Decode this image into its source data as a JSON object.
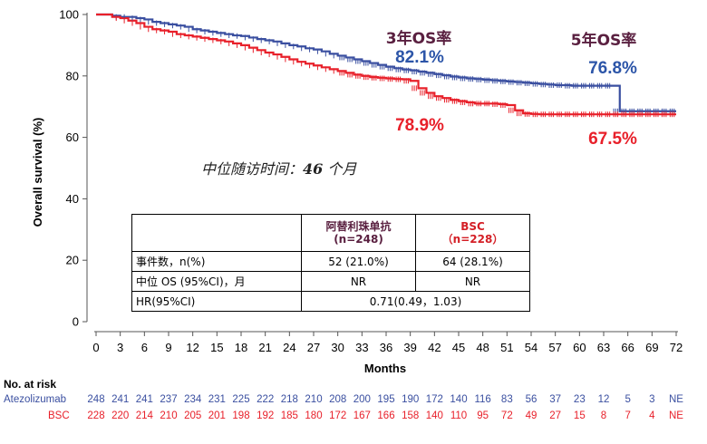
{
  "chart_data": {
    "type": "line",
    "subtype": "kaplan-meier",
    "xlabel": "Months",
    "ylabel": "Overall survival (%)",
    "xlim": [
      0,
      72
    ],
    "ylim": [
      0,
      100
    ],
    "xticks": [
      0,
      3,
      6,
      9,
      12,
      15,
      18,
      21,
      24,
      27,
      30,
      33,
      36,
      39,
      42,
      45,
      48,
      51,
      54,
      57,
      60,
      63,
      66,
      69,
      72
    ],
    "yticks": [
      0,
      20,
      40,
      60,
      80,
      100
    ],
    "series": [
      {
        "name": "Atezolizumab",
        "color": "#3a4fa0",
        "x": [
          0,
          1,
          2,
          3,
          4,
          5,
          6,
          7,
          8,
          9,
          10,
          11,
          12,
          13,
          14,
          15,
          16,
          17,
          18,
          19,
          20,
          21,
          22,
          23,
          24,
          25,
          26,
          27,
          28,
          29,
          30,
          31,
          32,
          33,
          34,
          35,
          36,
          37,
          38,
          39,
          40,
          41,
          42,
          43,
          44,
          45,
          46,
          47,
          48,
          49,
          50,
          51,
          52,
          53,
          54,
          55,
          56,
          57,
          58,
          59,
          60,
          61,
          62,
          63,
          64,
          65,
          66,
          67,
          68,
          69,
          70,
          71,
          72
        ],
        "y": [
          100,
          100,
          99.6,
          99.2,
          99.2,
          98.8,
          98.4,
          97.6,
          97.2,
          96.8,
          96.4,
          96,
          95.2,
          94.8,
          94.4,
          94,
          93.6,
          93.2,
          93,
          92.5,
          92,
          91.6,
          91.2,
          90.6,
          90,
          89.6,
          89,
          88.6,
          88,
          87.2,
          86.6,
          86,
          85.4,
          84.8,
          84.2,
          83.6,
          83,
          82.5,
          82.1,
          81.8,
          81.4,
          81,
          80.6,
          80.2,
          79.8,
          79.5,
          79.2,
          79,
          78.8,
          78.6,
          78.4,
          78.2,
          78,
          77.8,
          77.6,
          77.4,
          77.2,
          77,
          77,
          76.8,
          76.8,
          76.8,
          76.8,
          76.8,
          76.8,
          68.5,
          68.5,
          68.5,
          68.5,
          68.5,
          68.5,
          68.5,
          68.5
        ]
      },
      {
        "name": "BSC",
        "color": "#e8202a",
        "x": [
          0,
          1,
          2,
          3,
          4,
          5,
          6,
          7,
          8,
          9,
          10,
          11,
          12,
          13,
          14,
          15,
          16,
          17,
          18,
          19,
          20,
          21,
          22,
          23,
          24,
          25,
          26,
          27,
          28,
          29,
          30,
          31,
          32,
          33,
          34,
          35,
          36,
          37,
          38,
          39,
          40,
          41,
          42,
          43,
          44,
          45,
          46,
          47,
          48,
          49,
          50,
          51,
          52,
          53,
          54,
          55,
          56,
          57,
          58,
          59,
          60,
          61,
          62,
          63,
          64,
          65,
          66,
          67,
          68,
          69,
          70,
          71,
          72
        ],
        "y": [
          100,
          100,
          99.2,
          98.8,
          98,
          97.2,
          96,
          95.2,
          94.8,
          94.4,
          93.6,
          93.2,
          92.8,
          92.4,
          92,
          91.6,
          91.2,
          90.6,
          90,
          89.2,
          88.4,
          87.6,
          87,
          86.2,
          85.4,
          84.6,
          84,
          83.4,
          82.8,
          82.2,
          81.6,
          81,
          80.4,
          80,
          79.6,
          79.4,
          79.2,
          79,
          78.9,
          78.4,
          76,
          74.5,
          73.4,
          72.8,
          72.2,
          71.8,
          71.4,
          71,
          71,
          71,
          70.8,
          70.5,
          68.8,
          67.8,
          67.6,
          67.5,
          67.5,
          67.5,
          67.5,
          67.5,
          67.5,
          67.5,
          67.5,
          67.5,
          67.5,
          67.5,
          67.5,
          67.5,
          67.5,
          67.5,
          67.5,
          67.5,
          67.5
        ]
      }
    ],
    "annotations": {
      "os3_title": "3年OS率",
      "os3_atezo": "82.1%",
      "os3_bsc": "78.9%",
      "os5_title": "5年OS率",
      "os5_atezo": "76.8%",
      "os5_bsc": "67.5%",
      "followup_prefix": "中位随访时间：",
      "followup_value": "46",
      "followup_suffix": " 个月"
    },
    "number_at_risk": {
      "title": "No. at risk",
      "rows": [
        {
          "name": "Atezolizumab",
          "color": "#3a4fa0",
          "values": [
            "248",
            "241",
            "241",
            "237",
            "234",
            "231",
            "225",
            "222",
            "218",
            "210",
            "208",
            "200",
            "195",
            "190",
            "172",
            "140",
            "116",
            "83",
            "56",
            "37",
            "23",
            "12",
            "5",
            "3",
            "NE"
          ]
        },
        {
          "name": "BSC",
          "color": "#e8202a",
          "values": [
            "228",
            "220",
            "214",
            "210",
            "205",
            "201",
            "198",
            "192",
            "185",
            "180",
            "172",
            "167",
            "166",
            "158",
            "140",
            "110",
            "95",
            "72",
            "49",
            "27",
            "15",
            "8",
            "7",
            "4",
            "NE"
          ]
        }
      ]
    },
    "table": {
      "header_atezo_line1": "阿替利珠单抗",
      "header_atezo_line2": "(n=248)",
      "header_bsc_line1": "BSC",
      "header_bsc_line2": "（n=228）",
      "rows": [
        {
          "label": "事件数，n(%)",
          "atezo": "52 (21.0%)",
          "bsc": "64 (28.1%)"
        },
        {
          "label": "中位 OS (95%CI)，月",
          "atezo": "NR",
          "bsc": "NR"
        }
      ],
      "hr_label": "HR(95%CI)",
      "hr_value": "0.71(0.49，1.03)"
    }
  }
}
